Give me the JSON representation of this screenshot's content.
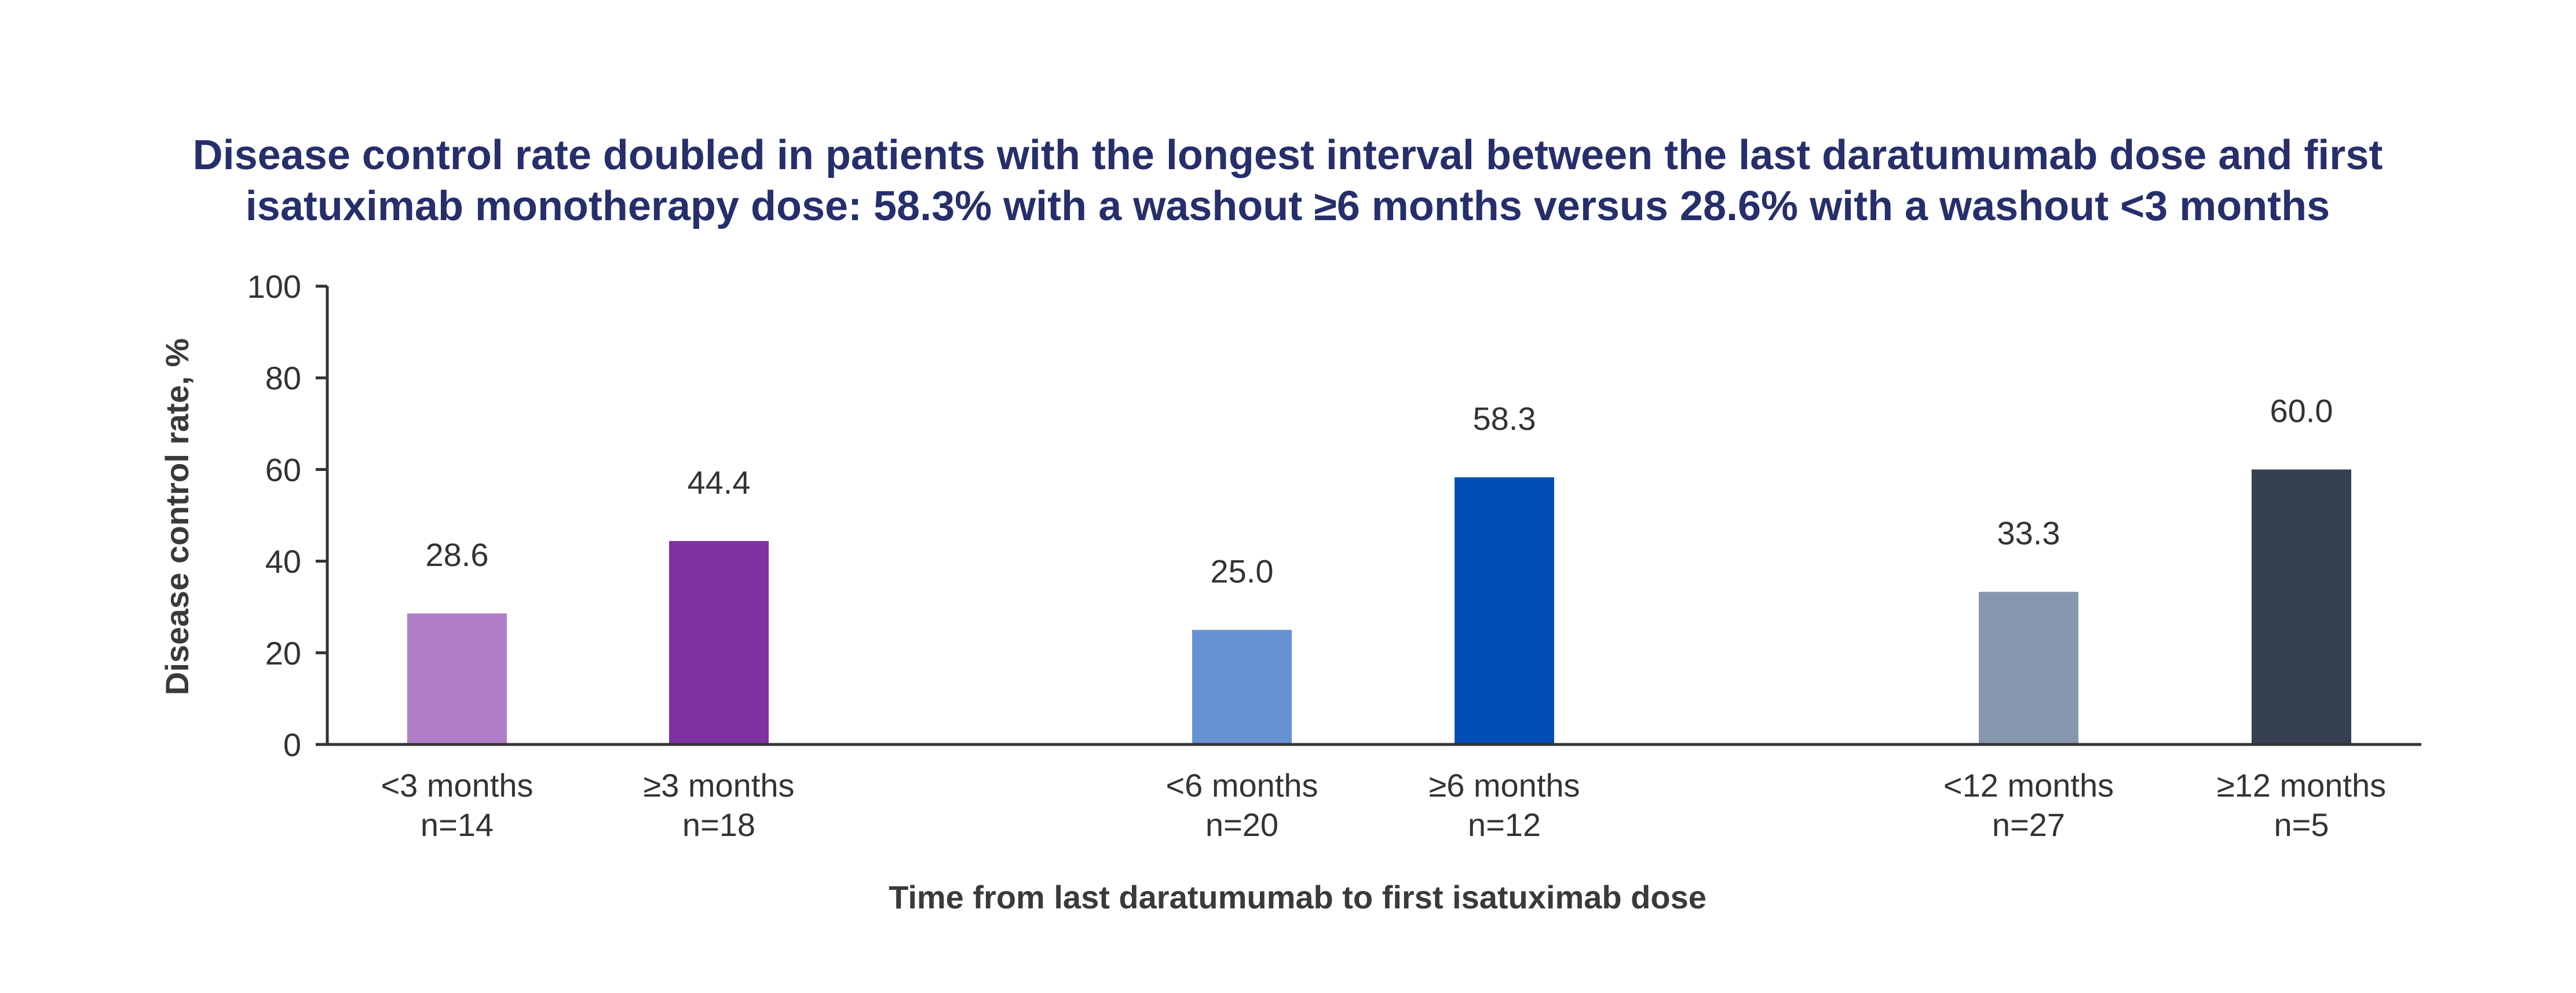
{
  "chart_data": {
    "type": "bar",
    "title": [
      "Disease control rate doubled in patients with the longest interval between the last daratumumab dose and first",
      "isatuximab monotherapy dose: 58.3% with a washout ≥6 months versus 28.6% with a washout <3 months"
    ],
    "xlabel": "Time from last daratumumab to first isatuximab dose",
    "ylabel": "Disease control rate, %",
    "ylim": [
      0,
      100
    ],
    "yticks": [
      "0",
      "20",
      "40",
      "60",
      "80",
      "100"
    ],
    "grid": false,
    "legend": "none",
    "categories": [
      {
        "label": "<3 months",
        "n": "n=14",
        "value": 28.6,
        "display": "28.6",
        "color": "#b07fc7"
      },
      {
        "label": "≥3 months",
        "n": "n=18",
        "value": 44.4,
        "display": "44.4",
        "color": "#7f32a2"
      },
      {
        "label": "<6 months",
        "n": "n=20",
        "value": 25.0,
        "display": "25.0",
        "color": "#6792d2"
      },
      {
        "label": "≥6 months",
        "n": "n=12",
        "value": 58.3,
        "display": "58.3",
        "color": "#004eb8"
      },
      {
        "label": "<12 months",
        "n": "n=27",
        "value": 33.3,
        "display": "33.3",
        "color": "#8797b0"
      },
      {
        "label": "≥12 months",
        "n": "n=5",
        "value": 60.0,
        "display": "60.0",
        "color": "#343f52"
      }
    ]
  }
}
